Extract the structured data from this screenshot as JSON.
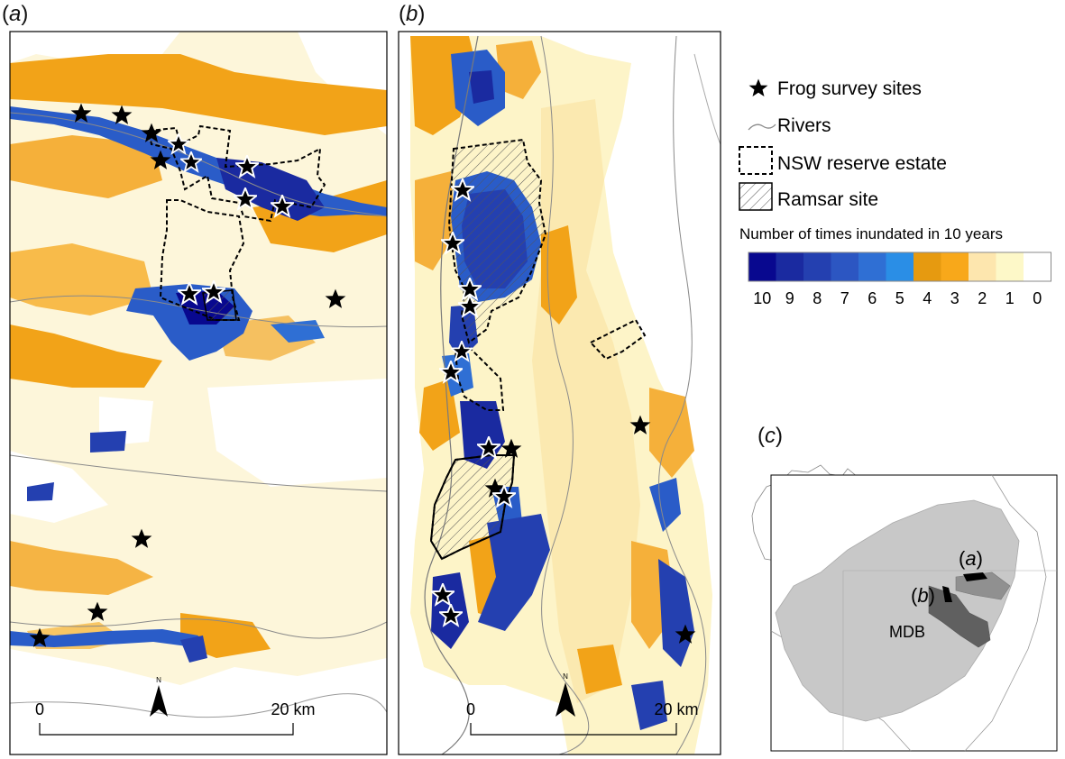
{
  "panels": {
    "a": {
      "label_open": "(",
      "label_letter": "a",
      "label_close": ")"
    },
    "b": {
      "label_open": "(",
      "label_letter": "b",
      "label_close": ")"
    },
    "c": {
      "label_open": "(",
      "label_letter": "c",
      "label_close": ")"
    }
  },
  "legend": {
    "frog_sites": "Frog survey sites",
    "rivers": "Rivers",
    "reserve": "NSW reserve estate",
    "ramsar": "Ramsar site",
    "inundation_title": "Number of times inundated in 10 years",
    "classes": [
      {
        "value": "10",
        "color": "#08088f"
      },
      {
        "value": "9",
        "color": "#1a2aa0"
      },
      {
        "value": "8",
        "color": "#2440b0"
      },
      {
        "value": "7",
        "color": "#2c56c2"
      },
      {
        "value": "6",
        "color": "#2f6fd4"
      },
      {
        "value": "5",
        "color": "#2a8ee6"
      },
      {
        "value": "4",
        "color": "#e69a10"
      },
      {
        "value": "3",
        "color": "#f8a81a"
      },
      {
        "value": "2",
        "color": "#fde6ae"
      },
      {
        "value": "1",
        "color": "#fdf8c8"
      },
      {
        "value": "0",
        "color": "#ffffff"
      }
    ]
  },
  "scalebar_a": {
    "start": "0",
    "end": "20 km"
  },
  "scalebar_b": {
    "start": "0",
    "end": "20 km"
  },
  "north_label": "N",
  "inset": {
    "mdb_label": "MDB",
    "label_a": "a",
    "label_b": "b"
  },
  "colors": {
    "deep_blue": "#0a1496",
    "mid_blue": "#2a5cc8",
    "orange": "#f2a318",
    "pale_yellow": "#fbefbf",
    "cream": "#fdf7dc",
    "mdb_gray": "#c8c8c8",
    "catchment_a": "#909090",
    "catchment_b": "#606060"
  }
}
